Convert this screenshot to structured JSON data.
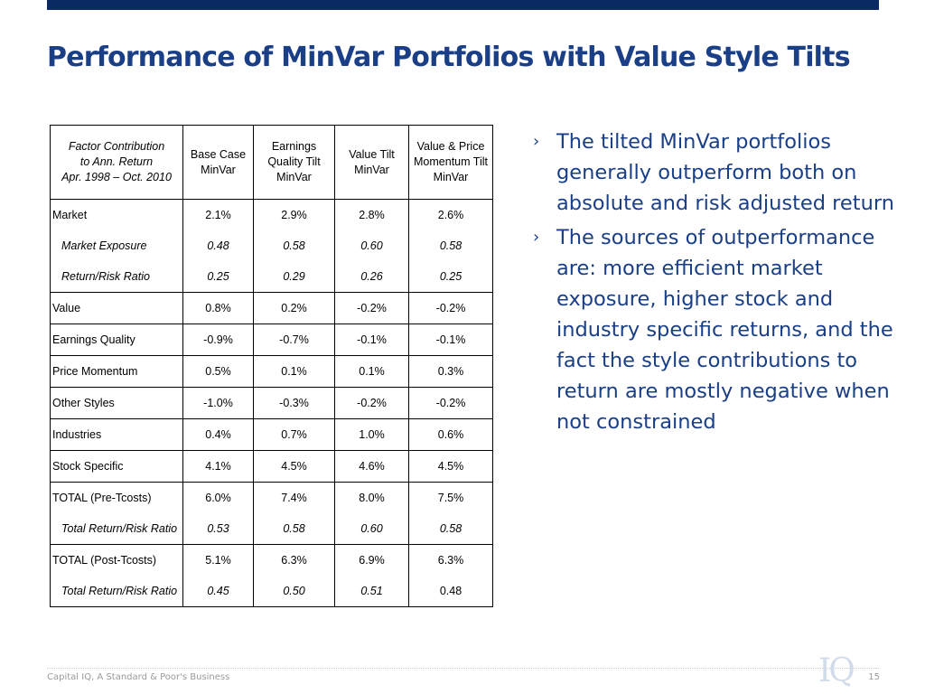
{
  "slide": {
    "title": "Performance of MinVar Portfolios with Value Style Tilts"
  },
  "table": {
    "header": {
      "factor_lines": [
        "Factor Contribution",
        "to Ann. Return",
        "Apr. 1998 – Oct. 2010"
      ],
      "columns": [
        [
          "Base Case",
          "MinVar"
        ],
        [
          "Earnings",
          "Quality Tilt",
          "MinVar"
        ],
        [
          "Value Tilt",
          "MinVar"
        ],
        [
          "Value & Price",
          "Momentum Tilt",
          "MinVar"
        ]
      ]
    },
    "rows": [
      {
        "label": "Market",
        "values": [
          "2.1%",
          "2.9%",
          "2.8%",
          "2.6%"
        ]
      },
      {
        "label": "Market Exposure",
        "values": [
          "0.48",
          "0.58",
          "0.60",
          "0.58"
        ]
      },
      {
        "label": "Return/Risk Ratio",
        "values": [
          "0.25",
          "0.29",
          "0.26",
          "0.25"
        ]
      },
      {
        "label": "Value",
        "values": [
          "0.8%",
          "0.2%",
          "-0.2%",
          "-0.2%"
        ]
      },
      {
        "label": "Earnings Quality",
        "values": [
          "-0.9%",
          "-0.7%",
          "-0.1%",
          "-0.1%"
        ]
      },
      {
        "label": "Price Momentum",
        "values": [
          "0.5%",
          "0.1%",
          "0.1%",
          "0.3%"
        ]
      },
      {
        "label": "Other Styles",
        "values": [
          "-1.0%",
          "-0.3%",
          "-0.2%",
          "-0.2%"
        ]
      },
      {
        "label": "Industries",
        "values": [
          "0.4%",
          "0.7%",
          "1.0%",
          "0.6%"
        ]
      },
      {
        "label": "Stock Specific",
        "values": [
          "4.1%",
          "4.5%",
          "4.6%",
          "4.5%"
        ]
      },
      {
        "label": "TOTAL (Pre-Tcosts)",
        "values": [
          "6.0%",
          "7.4%",
          "8.0%",
          "7.5%"
        ]
      },
      {
        "label": "Total Return/Risk Ratio",
        "values": [
          "0.53",
          "0.58",
          "0.60",
          "0.58"
        ]
      },
      {
        "label": "TOTAL (Post-Tcosts)",
        "values": [
          "5.1%",
          "6.3%",
          "6.9%",
          "6.3%"
        ]
      },
      {
        "label": "Total Return/Risk Ratio",
        "values": [
          "0.45",
          "0.50",
          "0.51",
          "0.48"
        ]
      }
    ]
  },
  "bullets": [
    "The tilted MinVar portfolios generally outperform both on absolute and risk adjusted return",
    "The sources of outperformance are: more efficient market exposure, higher stock and industry specific returns, and the fact the style contributions to return are mostly negative when not constrained"
  ],
  "footer": {
    "company": "Capital IQ, A Standard & Poor's Business",
    "logo_text": "IQ",
    "page_number": "15"
  },
  "colors": {
    "brand_navy": "#0b2a63",
    "title_blue": "#1a3f86"
  }
}
